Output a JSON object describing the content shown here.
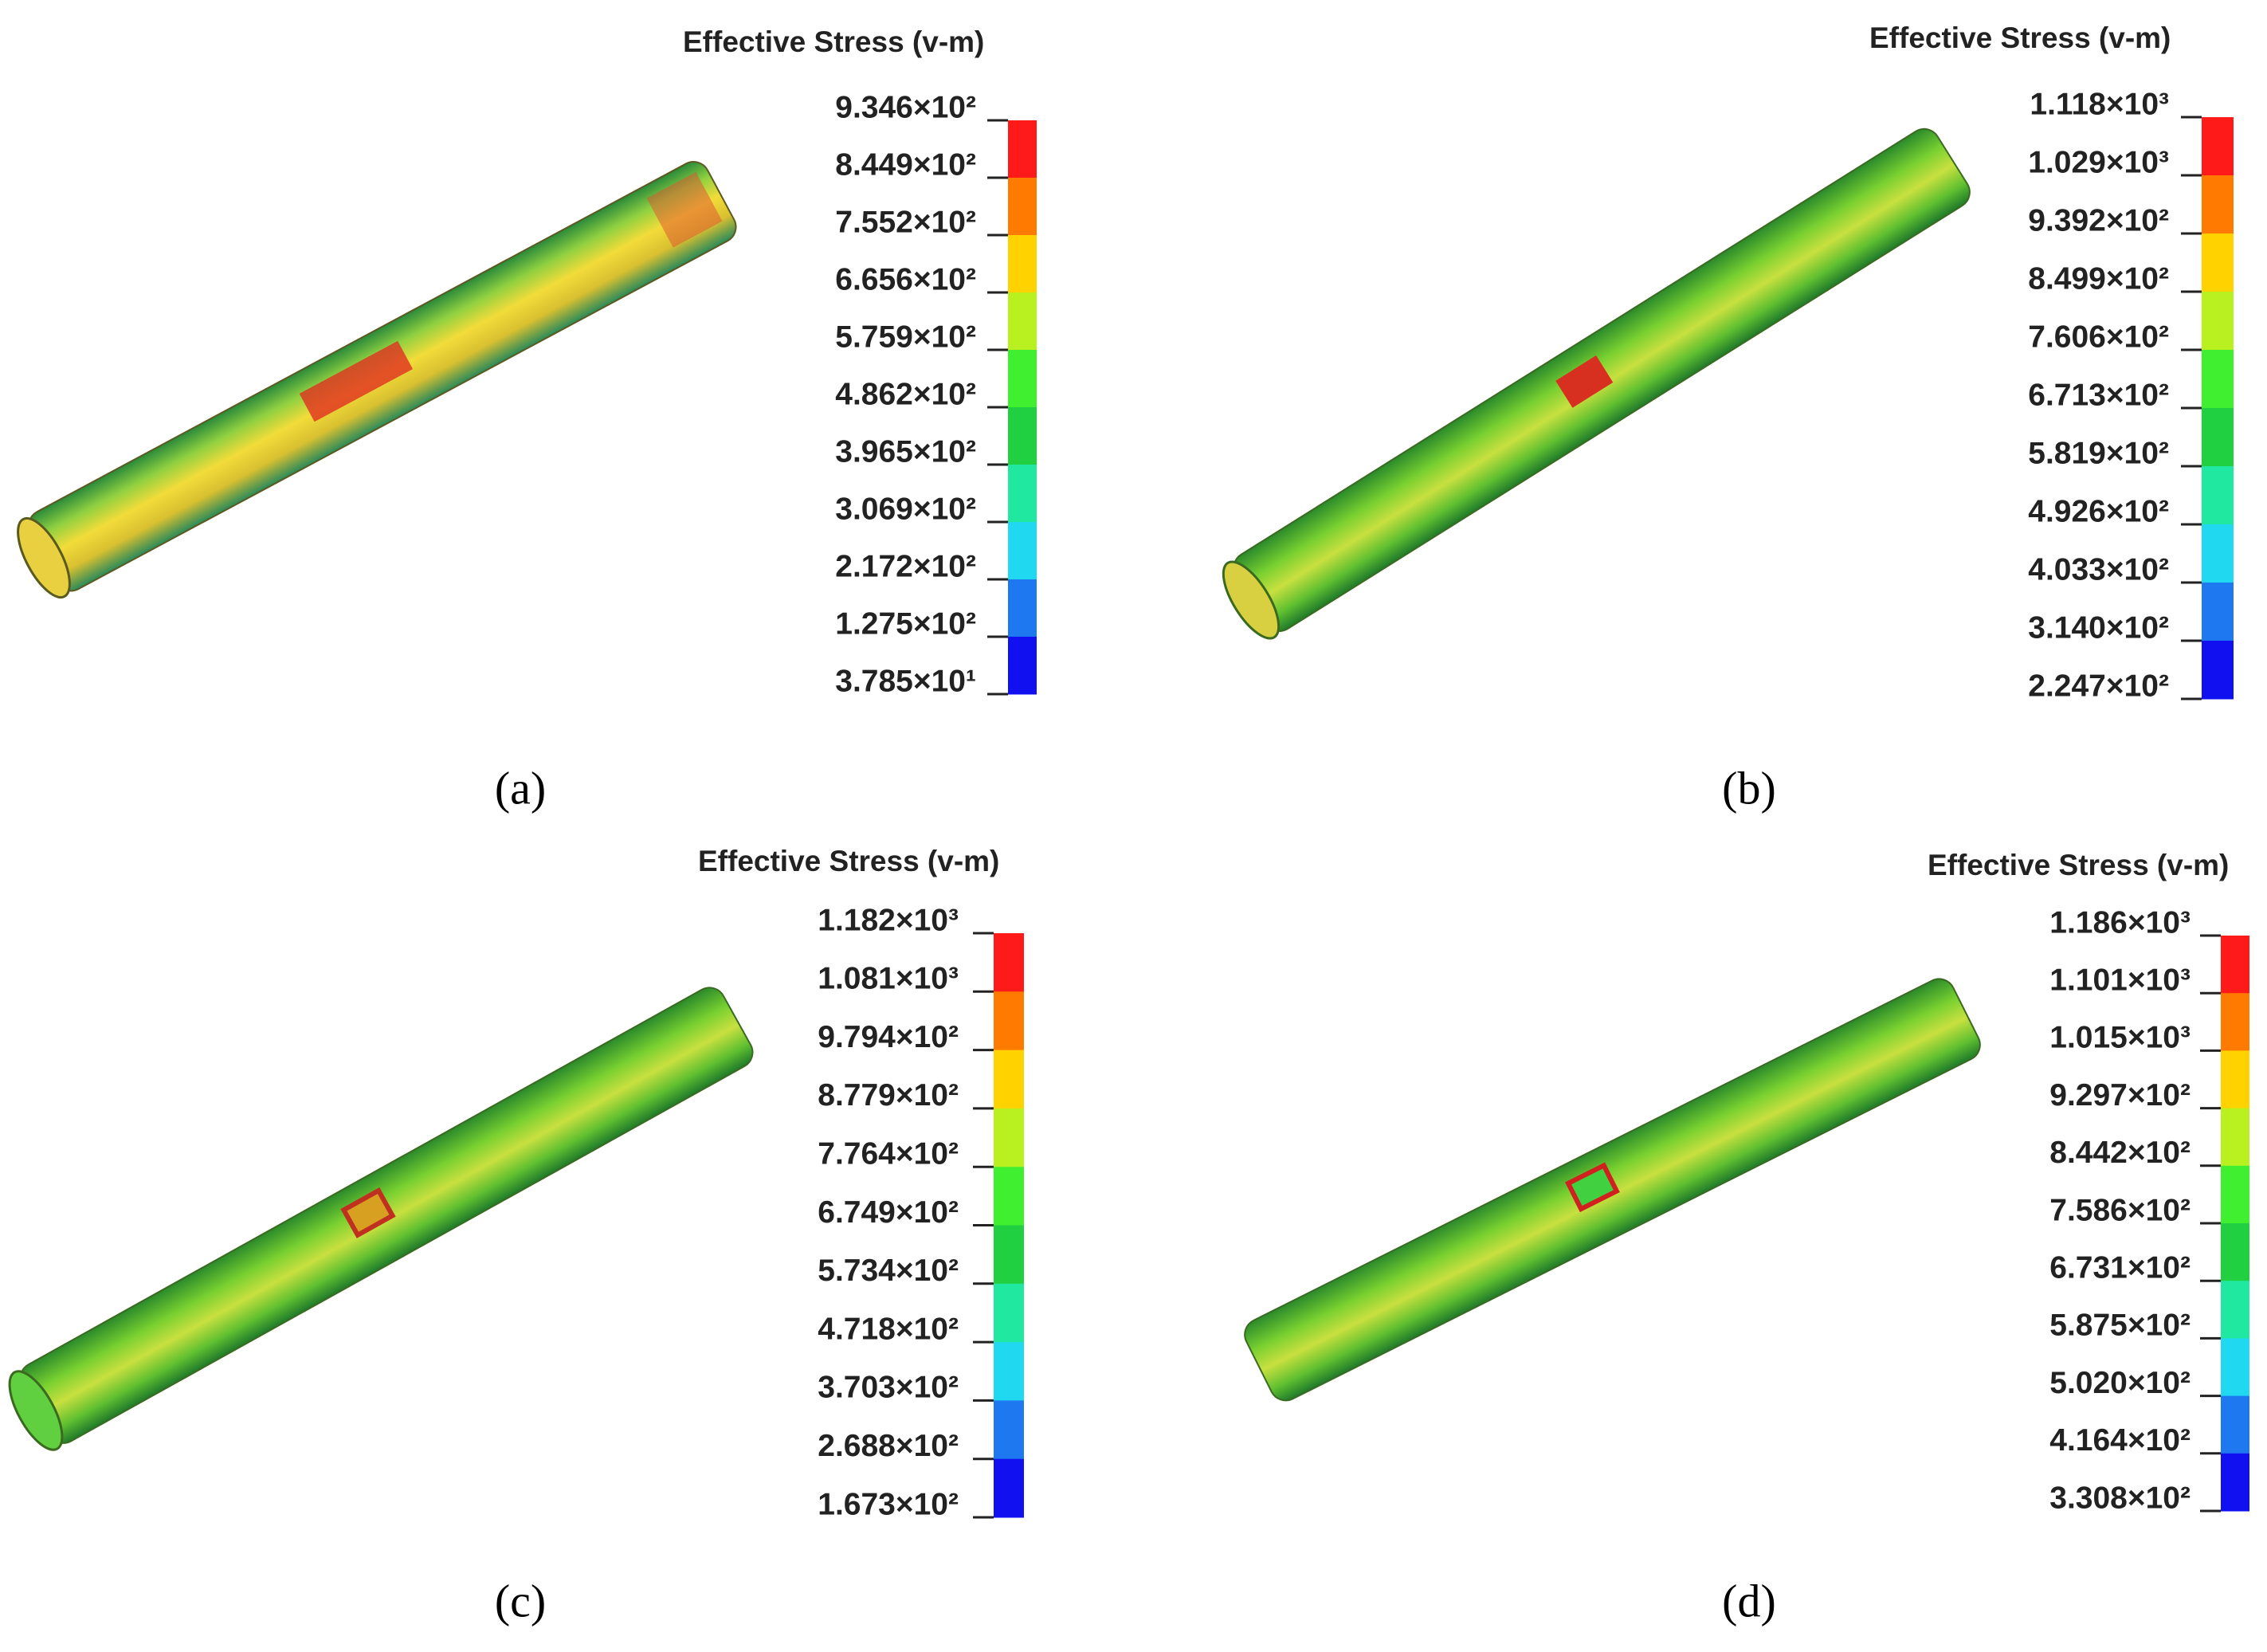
{
  "panels": [
    {
      "caption": "(a)",
      "legend_title": "Effective Stress (v-m)",
      "labels": [
        "9.346×10²",
        "8.449×10²",
        "7.552×10²",
        "6.656×10²",
        "5.759×10²",
        "4.862×10²",
        "3.965×10²",
        "3.069×10²",
        "2.172×10²",
        "1.275×10²",
        "3.785×10¹"
      ]
    },
    {
      "caption": "(b)",
      "legend_title": "Effective Stress (v-m)",
      "labels": [
        "1.118×10³",
        "1.029×10³",
        "9.392×10²",
        "8.499×10²",
        "7.606×10²",
        "6.713×10²",
        "5.819×10²",
        "4.926×10²",
        "4.033×10²",
        "3.140×10²",
        "2.247×10²"
      ]
    },
    {
      "caption": "(c)",
      "legend_title": "Effective Stress (v-m)",
      "labels": [
        "1.182×10³",
        "1.081×10³",
        "9.794×10²",
        "8.779×10²",
        "7.764×10²",
        "6.749×10²",
        "5.734×10²",
        "4.718×10²",
        "3.703×10²",
        "2.688×10²",
        "1.673×10²"
      ]
    },
    {
      "caption": "(d)",
      "legend_title": "Effective Stress (v-m)",
      "labels": [
        "1.186×10³",
        "1.101×10³",
        "1.015×10³",
        "9.297×10²",
        "8.442×10²",
        "7.586×10²",
        "6.731×10²",
        "5.875×10²",
        "5.020×10²",
        "4.164×10²",
        "3.308×10²"
      ]
    }
  ]
}
